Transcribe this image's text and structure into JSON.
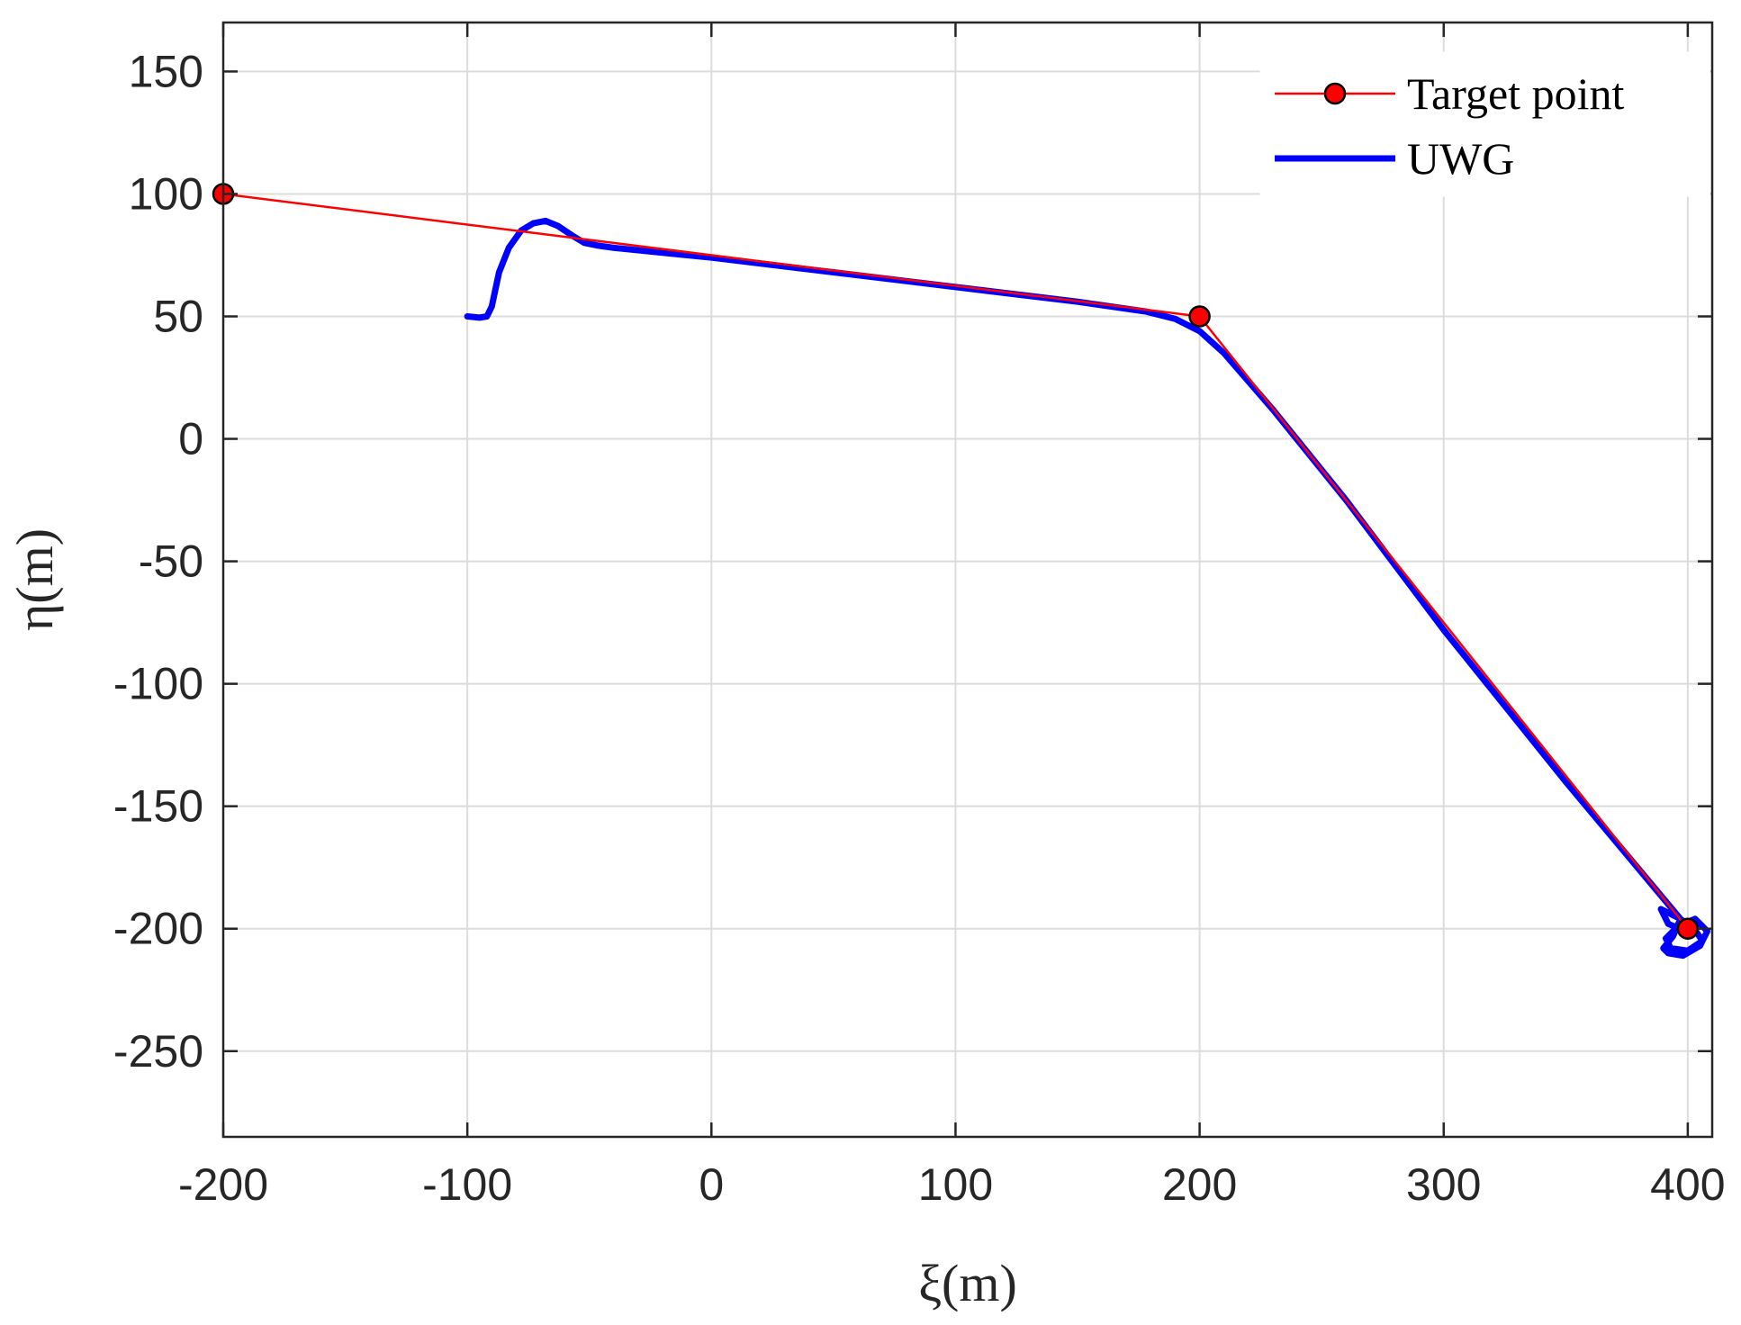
{
  "chart_data": {
    "type": "line",
    "xlabel": "ξ(m)",
    "ylabel": "η(m)",
    "xlim": [
      -200,
      410
    ],
    "ylim": [
      -285,
      170
    ],
    "x_ticks": [
      -200,
      -100,
      0,
      100,
      200,
      300,
      400
    ],
    "y_ticks": [
      -250,
      -200,
      -150,
      -100,
      -50,
      0,
      50,
      100,
      150
    ],
    "x_tick_labels": [
      "-200",
      "-100",
      "0",
      "100",
      "200",
      "300",
      "400"
    ],
    "y_tick_labels": [
      "-250",
      "-200",
      "-150",
      "-100",
      "-50",
      "0",
      "50",
      "100",
      "150"
    ],
    "grid": true,
    "legend_position": "top-right",
    "series": [
      {
        "name": "Target point",
        "color": "#ff0000",
        "marker": "circle",
        "marker_fill": "#ff0000",
        "marker_edge": "#000000",
        "x": [
          -200,
          200,
          400
        ],
        "y": [
          100,
          50,
          -200
        ]
      },
      {
        "name": "UWG",
        "color": "#0000ff",
        "x": [
          -100,
          -95,
          -92,
          -90,
          -87,
          -83,
          -78,
          -73,
          -68,
          -63,
          -57,
          -52,
          -47,
          -40,
          -20,
          0,
          50,
          100,
          150,
          178,
          190,
          200,
          210,
          230,
          260,
          300,
          350,
          397,
          394,
          390,
          392,
          398,
          405,
          408,
          403,
          396,
          391,
          393,
          400,
          406,
          402,
          395,
          389,
          392,
          399
        ],
        "y": [
          50,
          49.5,
          50,
          54,
          68,
          78,
          85,
          88,
          89,
          87,
          83,
          80,
          79,
          78,
          76,
          74,
          68,
          62,
          56,
          52,
          49,
          44,
          35,
          12,
          -25,
          -78,
          -140,
          -196,
          -203,
          -208,
          -210,
          -211,
          -207,
          -201,
          -196,
          -199,
          -204,
          -208,
          -209,
          -205,
          -199,
          -195,
          -192,
          -198,
          -201
        ]
      }
    ]
  }
}
